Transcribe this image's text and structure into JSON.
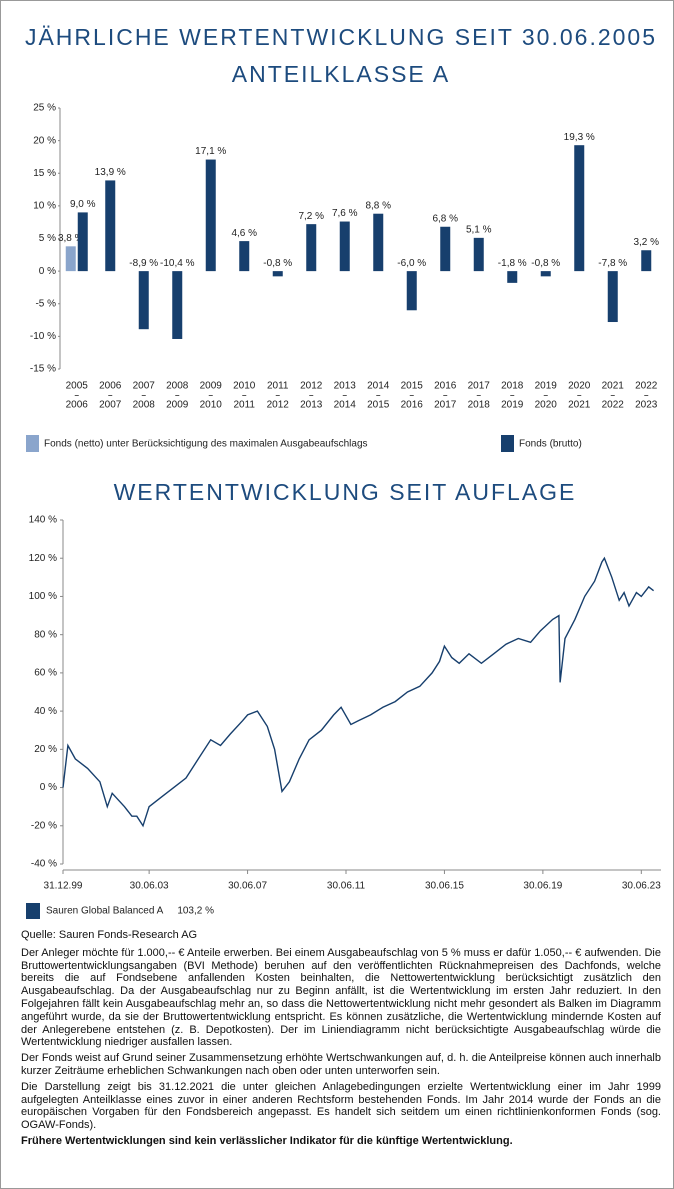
{
  "chart_data": [
    {
      "type": "bar",
      "title": "JÄHRLICHE WERTENTWICKLUNG SEIT 30.06.2005",
      "subtitle": "ANTEILKLASSE A",
      "categories": [
        [
          "2005",
          "2006"
        ],
        [
          "2006",
          "2007"
        ],
        [
          "2007",
          "2008"
        ],
        [
          "2008",
          "2009"
        ],
        [
          "2009",
          "2010"
        ],
        [
          "2010",
          "2011"
        ],
        [
          "2011",
          "2012"
        ],
        [
          "2012",
          "2013"
        ],
        [
          "2013",
          "2014"
        ],
        [
          "2014",
          "2015"
        ],
        [
          "2015",
          "2016"
        ],
        [
          "2016",
          "2017"
        ],
        [
          "2017",
          "2018"
        ],
        [
          "2018",
          "2019"
        ],
        [
          "2019",
          "2020"
        ],
        [
          "2020",
          "2021"
        ],
        [
          "2021",
          "2022"
        ],
        [
          "2022",
          "2023"
        ]
      ],
      "series": [
        {
          "name": "Fonds (netto) unter Berücksichtigung des maximalen Ausgabeaufschlags",
          "color": "#8aa5cc",
          "values": [
            3.8,
            null,
            null,
            null,
            null,
            null,
            null,
            null,
            null,
            null,
            null,
            null,
            null,
            null,
            null,
            null,
            null,
            null
          ],
          "value_labels": [
            "3,8 %",
            null,
            null,
            null,
            null,
            null,
            null,
            null,
            null,
            null,
            null,
            null,
            null,
            null,
            null,
            null,
            null,
            null
          ]
        },
        {
          "name": "Fonds (brutto)",
          "color": "#173f6d",
          "values": [
            9.0,
            13.9,
            -8.9,
            -10.4,
            17.1,
            4.6,
            -0.8,
            7.2,
            7.6,
            8.8,
            -6.0,
            6.8,
            5.1,
            -1.8,
            -0.8,
            19.3,
            -7.8,
            3.2
          ],
          "value_labels": [
            "9,0 %",
            "13,9 %",
            "-8,9 %",
            "-10,4 %",
            "17,1 %",
            "4,6 %",
            "-0,8 %",
            "7,2 %",
            "7,6 %",
            "8,8 %",
            "-6,0 %",
            "6,8 %",
            "5,1 %",
            "-1,8 %",
            "-0,8 %",
            "19,3 %",
            "-7,8 %",
            "3,2 %"
          ]
        }
      ],
      "ylim": [
        -15,
        25
      ],
      "yticks": [
        {
          "value": 25,
          "label": "25 %"
        },
        {
          "value": 20,
          "label": "20 %"
        },
        {
          "value": 15,
          "label": "15 %"
        },
        {
          "value": 10,
          "label": "10 %"
        },
        {
          "value": 5,
          "label": "5 %"
        },
        {
          "value": 0,
          "label": "0 %"
        },
        {
          "value": -5,
          "label": "-5 %"
        },
        {
          "value": -10,
          "label": "-10 %"
        },
        {
          "value": -15,
          "label": "-15 %"
        }
      ]
    },
    {
      "type": "line",
      "title": "WERTENTWICKLUNG SEIT AUFLAGE",
      "x": [
        2000,
        2000.2,
        2000.5,
        2001,
        2001.5,
        2001.8,
        2002,
        2002.5,
        2002.8,
        2003,
        2003.25,
        2003.5,
        2004,
        2004.5,
        2005,
        2005.5,
        2006,
        2006.4,
        2006.8,
        2007.3,
        2007.5,
        2007.9,
        2008.3,
        2008.6,
        2008.9,
        2009.2,
        2009.6,
        2010,
        2010.5,
        2011,
        2011.3,
        2011.7,
        2012,
        2012.5,
        2013,
        2013.5,
        2014,
        2014.5,
        2015,
        2015.3,
        2015.5,
        2015.8,
        2016.1,
        2016.5,
        2017,
        2017.5,
        2018,
        2018.5,
        2019,
        2019.4,
        2019.9,
        2020.15,
        2020.2,
        2020.4,
        2020.8,
        2021.2,
        2021.6,
        2021.9,
        2022,
        2022.3,
        2022.6,
        2022.8,
        2023,
        2023.3,
        2023.5,
        2023.8,
        2024
      ],
      "series": [
        {
          "name": "Sauren Global Balanced A",
          "color": "#173f6d",
          "axis_label": "103,2 %",
          "values": [
            0,
            22,
            15,
            10,
            3,
            -10,
            -3,
            -10,
            -15,
            -15,
            -20,
            -10,
            -5,
            0,
            5,
            15,
            25,
            22,
            28,
            35,
            38,
            40,
            32,
            20,
            -2,
            3,
            15,
            25,
            30,
            38,
            42,
            33,
            35,
            38,
            42,
            45,
            50,
            53,
            60,
            66,
            74,
            68,
            65,
            70,
            65,
            70,
            75,
            78,
            76,
            82,
            88,
            90,
            55,
            78,
            88,
            100,
            108,
            118,
            120,
            110,
            98,
            102,
            95,
            102,
            100,
            105,
            103
          ]
        }
      ],
      "xlim": [
        2000,
        2024.3
      ],
      "xticks": [
        {
          "value": 2000,
          "label": "31.12.99"
        },
        {
          "value": 2003.5,
          "label": "30.06.03"
        },
        {
          "value": 2007.5,
          "label": "30.06.07"
        },
        {
          "value": 2011.5,
          "label": "30.06.11"
        },
        {
          "value": 2015.5,
          "label": "30.06.15"
        },
        {
          "value": 2019.5,
          "label": "30.06.19"
        },
        {
          "value": 2023.5,
          "label": "30.06.23"
        }
      ],
      "ylim": [
        -40,
        140
      ],
      "yticks": [
        {
          "value": 140,
          "label": "140 %"
        },
        {
          "value": 120,
          "label": "120 %"
        },
        {
          "value": 100,
          "label": "100 %"
        },
        {
          "value": 80,
          "label": "80 %"
        },
        {
          "value": 60,
          "label": "60 %"
        },
        {
          "value": 40,
          "label": "40 %"
        },
        {
          "value": 20,
          "label": "20 %"
        },
        {
          "value": 0,
          "label": "0 %"
        },
        {
          "value": -20,
          "label": "-20 %"
        },
        {
          "value": -40,
          "label": "-40 %"
        }
      ]
    }
  ],
  "document": {
    "source": "Quelle: Sauren Fonds-Research AG",
    "paragraphs": [
      "Der Anleger möchte für 1.000,-- € Anteile erwerben. Bei einem Ausgabeaufschlag von 5 % muss er dafür 1.050,-- € aufwenden. Die Bruttowertentwicklungsangaben (BVI Methode) beruhen auf den veröffentlichten Rücknahmepreisen des Dachfonds, welche bereits die auf Fondsebene anfallenden Kosten beinhalten, die Nettowertentwicklung berücksichtigt zusätzlich den Ausgabeaufschlag. Da der Ausgabeaufschlag nur zu Beginn anfällt, ist die Wertentwicklung im ersten Jahr reduziert. In den Folgejahren fällt kein Ausgabeaufschlag mehr an, so dass die Nettowertentwicklung nicht mehr gesondert als Balken im Diagramm angeführt wurde, da sie der Bruttowertentwicklung entspricht. Es können zusätzliche, die Wertentwicklung mindernde Kosten auf der Anlegerebene entstehen (z. B. Depotkosten). Der im Liniendiagramm nicht berücksichtigte Ausgabeaufschlag würde die Wertentwicklung niedriger ausfallen lassen.",
      "Der Fonds weist auf Grund seiner Zusammensetzung erhöhte Wertschwankungen auf, d. h. die Anteilpreise können auch innerhalb kurzer Zeiträume erheblichen Schwankungen nach oben oder unten unterworfen sein.",
      "Die Darstellung zeigt bis 31.12.2021 die unter gleichen Anlagebedingungen erzielte Wertentwicklung einer im Jahr 1999 aufgelegten Anteilklasse eines zuvor in einer anderen Rechtsform bestehenden Fonds. Im Jahr 2014 wurde der Fonds an die europäischen Vorgaben für den Fondsbereich angepasst. Es handelt sich seitdem um einen richtlinienkonformen Fonds (sog. OGAW-Fonds)."
    ],
    "disclaimer": "Frühere Wertentwicklungen sind kein verlässlicher Indikator für die künftige Wertentwicklung."
  }
}
